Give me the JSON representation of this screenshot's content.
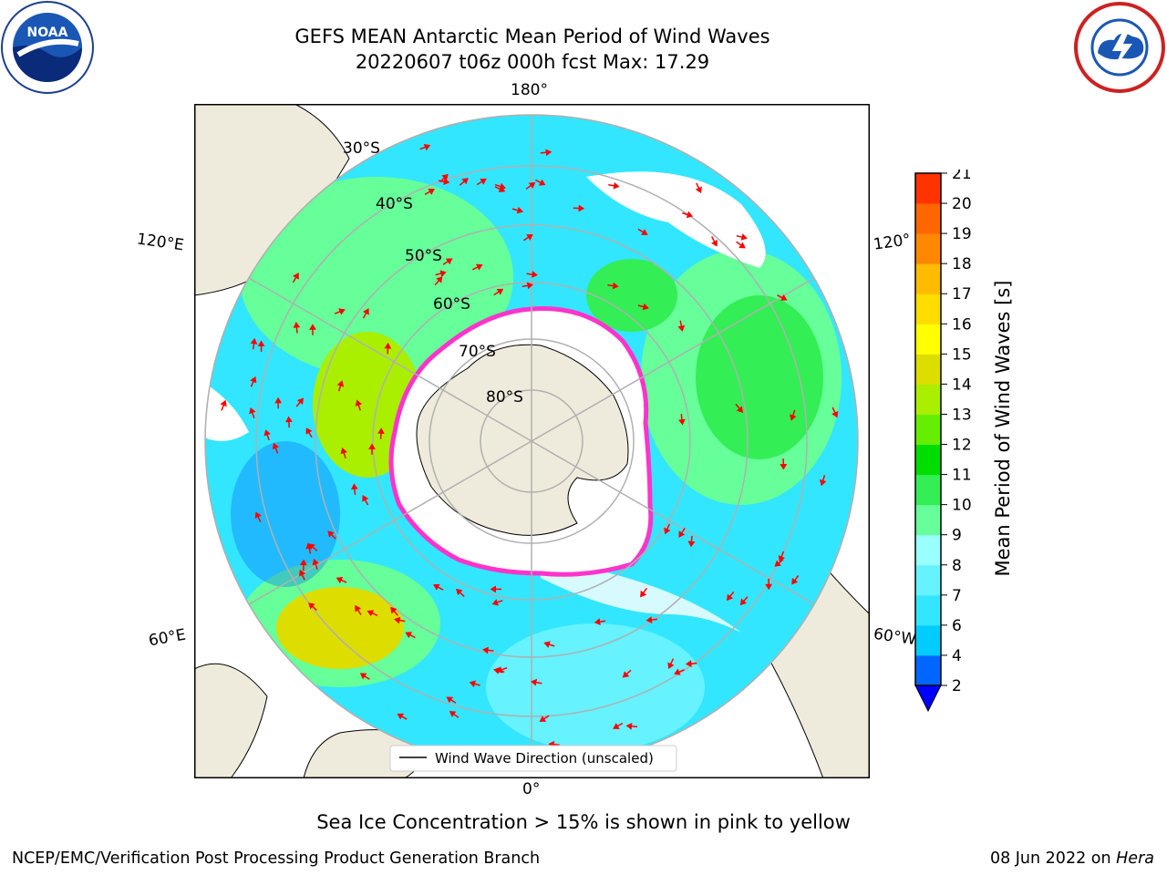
{
  "title": {
    "line1": "GEFS MEAN Antarctic Mean Period of Wind Waves",
    "line2": "20220607 t06z 000h fcst   Max: 17.29"
  },
  "logos": {
    "left": "NOAA",
    "right": "National Weather Service"
  },
  "map": {
    "projection": "south-polar-stereographic",
    "lon_labels": {
      "top": "180°",
      "bottom": "0°",
      "left_upper": "120°E",
      "left_lower": "60°E",
      "right_upper": "120°",
      "right_lower": "60°W"
    },
    "lat_labels": [
      "30°S",
      "40°S",
      "50°S",
      "60°S",
      "70°S",
      "80°S"
    ],
    "legend_label": "Wind Wave Direction (unscaled)",
    "colors": {
      "land": "#efebdc",
      "ocean_missing": "#ffffff",
      "ice_edge": "#ff33cc",
      "arrow": "#ff0000",
      "grid": "#b0b0b0"
    }
  },
  "colorbar": {
    "label": "Mean Period of Wind Waves [s]",
    "ticks": [
      "2",
      "4",
      "6",
      "7",
      "8",
      "9",
      "10",
      "11",
      "12",
      "13",
      "14",
      "15",
      "16",
      "17",
      "18",
      "19",
      "20",
      "21"
    ],
    "colors": [
      "#0066ff",
      "#00ccff",
      "#33e6ff",
      "#66f2ff",
      "#99ffff",
      "#66ff99",
      "#33ee55",
      "#00dd00",
      "#66ee00",
      "#aaee00",
      "#dddd00",
      "#ffff00",
      "#ffdd00",
      "#ffbb00",
      "#ff8800",
      "#ff6600",
      "#ff3300",
      "#ff0000"
    ]
  },
  "subtitle": "Sea Ice Concentration > 15% is shown in pink to yellow",
  "footer": {
    "left": "NCEP/EMC/Verification Post Processing Product Generation Branch",
    "right_date": "08 Jun 2022 on ",
    "right_host": "Hera"
  }
}
